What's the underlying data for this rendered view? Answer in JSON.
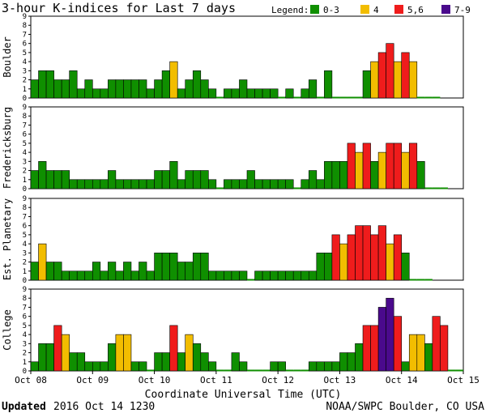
{
  "colors": {
    "low": "#0f8f00",
    "mid": "#f2bd00",
    "high": "#ef1c1c",
    "storm": "#4a0a8c",
    "edge": "#000000"
  },
  "header": {
    "title": "3-hour K-indices for Last 7 days",
    "legend_label": "Legend:"
  },
  "legend": [
    {
      "label": "0-3",
      "color": "#0f8f00"
    },
    {
      "label": "4",
      "color": "#f2bd00"
    },
    {
      "label": "5,6",
      "color": "#ef1c1c"
    },
    {
      "label": "7-9",
      "color": "#4a0a8c"
    }
  ],
  "footer": {
    "updated_label": "Updated",
    "updated_value": "2016 Oct 14 1230",
    "source": "NOAA/SWPC Boulder, CO USA"
  },
  "chart_data": {
    "type": "bar",
    "title": "3-hour K-indices for Last 7 days",
    "xlabel": "Coordinate Universal Time (UTC)",
    "x_ticks": [
      "Oct 08",
      "Oct 09",
      "Oct 10",
      "Oct 11",
      "Oct 12",
      "Oct 13",
      "Oct 14",
      "Oct 15"
    ],
    "y_ticks": [
      "0",
      "1",
      "2",
      "3",
      "4",
      "5",
      "6",
      "7",
      "8",
      "9"
    ],
    "ylim": [
      0,
      9
    ],
    "intervals_per_day": 8,
    "grid": false,
    "color_scale": [
      {
        "range": "0-3",
        "color": "#0f8f00"
      },
      {
        "range": "4",
        "color": "#f2bd00"
      },
      {
        "range": "5,6",
        "color": "#ef1c1c"
      },
      {
        "range": "7-9",
        "color": "#4a0a8c"
      }
    ],
    "series": [
      {
        "name": "Boulder",
        "values": [
          2,
          3,
          3,
          2,
          2,
          3,
          1,
          2,
          1,
          1,
          2,
          2,
          2,
          2,
          2,
          1,
          2,
          3,
          4,
          1,
          2,
          3,
          2,
          1,
          0,
          1,
          1,
          2,
          1,
          1,
          1,
          1,
          0,
          1,
          0,
          1,
          2,
          0,
          3,
          0,
          0,
          0,
          0,
          3,
          4,
          5,
          6,
          4,
          5,
          4,
          0,
          0,
          0
        ]
      },
      {
        "name": "Fredericksburg",
        "values": [
          2,
          3,
          2,
          2,
          2,
          1,
          1,
          1,
          1,
          1,
          2,
          1,
          1,
          1,
          1,
          1,
          2,
          2,
          3,
          1,
          2,
          2,
          2,
          1,
          0,
          1,
          1,
          1,
          2,
          1,
          1,
          1,
          1,
          1,
          0,
          1,
          2,
          1,
          3,
          3,
          3,
          5,
          4,
          5,
          3,
          4,
          5,
          5,
          4,
          5,
          3,
          0,
          0,
          0
        ]
      },
      {
        "name": "Est. Planetary",
        "values": [
          2,
          4,
          2,
          2,
          1,
          1,
          1,
          1,
          2,
          1,
          2,
          1,
          2,
          1,
          2,
          1,
          3,
          3,
          3,
          2,
          2,
          3,
          3,
          1,
          1,
          1,
          1,
          1,
          0,
          1,
          1,
          1,
          1,
          1,
          1,
          1,
          1,
          3,
          3,
          5,
          4,
          5,
          6,
          6,
          5,
          6,
          4,
          5,
          3,
          0,
          0,
          0
        ]
      },
      {
        "name": "College",
        "values": [
          1,
          3,
          3,
          5,
          4,
          2,
          2,
          1,
          1,
          1,
          3,
          4,
          4,
          1,
          1,
          0,
          2,
          2,
          5,
          2,
          4,
          3,
          2,
          1,
          0,
          0,
          2,
          1,
          0,
          0,
          0,
          1,
          1,
          0,
          0,
          0,
          1,
          1,
          1,
          1,
          2,
          2,
          3,
          5,
          5,
          7,
          8,
          6,
          1,
          4,
          4,
          3,
          6,
          5,
          0,
          0
        ]
      }
    ]
  }
}
